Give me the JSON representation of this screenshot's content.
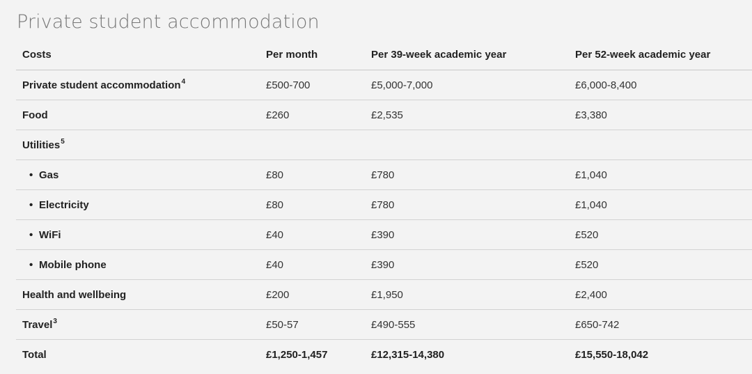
{
  "title": "Private student accommodation",
  "table": {
    "headers": [
      "Costs",
      "Per month",
      "Per 39-week academic year",
      "Per 52-week academic year"
    ],
    "rows": [
      {
        "label": "Private student accommodation",
        "sup": "4",
        "values": [
          "£500-700",
          "£5,000-7,000",
          "£6,000-8,400"
        ]
      },
      {
        "label": "Food",
        "values": [
          "£260",
          "£2,535",
          "£3,380"
        ]
      },
      {
        "label": "Utilities",
        "sup": "5",
        "values": [
          "",
          "",
          ""
        ]
      },
      {
        "label": "Gas",
        "bullet": "•",
        "values": [
          "£80",
          "£780",
          "£1,040"
        ]
      },
      {
        "label": "Electricity",
        "bullet": "•",
        "values": [
          "£80",
          "£780",
          "£1,040"
        ]
      },
      {
        "label": "WiFi",
        "bullet": "•",
        "values": [
          "£40",
          "£390",
          "£520"
        ]
      },
      {
        "label": "Mobile phone",
        "bullet": "•",
        "values": [
          "£40",
          "£390",
          "£520"
        ]
      },
      {
        "label": "Health and wellbeing",
        "values": [
          "£200",
          "£1,950",
          "£2,400"
        ]
      },
      {
        "label": "Travel",
        "sup": "3",
        "values": [
          "£50-57",
          "£490-555",
          "£650-742"
        ]
      },
      {
        "label": "Total",
        "values": [
          "£1,250-1,457",
          "£12,315-14,380",
          "£15,550-18,042"
        ]
      }
    ]
  }
}
